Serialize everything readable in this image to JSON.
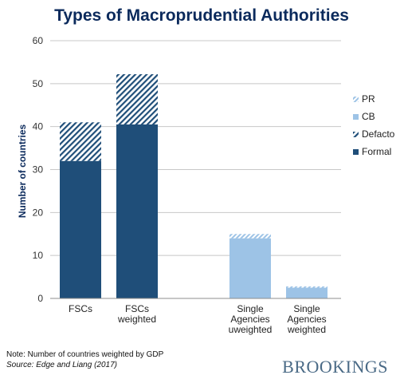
{
  "chart_data": {
    "type": "bar",
    "stacked": true,
    "title": "Types of Macroprudential Authorities",
    "ylabel": "Number of countries",
    "xlabel": "",
    "ylim": [
      0,
      60
    ],
    "yticks": [
      "0",
      "10",
      "20",
      "30",
      "40",
      "50",
      "60"
    ],
    "grid": true,
    "legend_position": "right",
    "categories": [
      [
        "FSCs"
      ],
      [
        "FSCs",
        "weighted"
      ],
      [
        "Single",
        "Agencies",
        "uweighted"
      ],
      [
        "Single",
        "Agencies",
        "weighted"
      ]
    ],
    "series": [
      {
        "name": "Formal",
        "values": [
          32,
          40.5,
          0,
          0
        ]
      },
      {
        "name": "Defacto",
        "values": [
          9,
          11.7,
          0,
          0
        ]
      },
      {
        "name": "CB",
        "values": [
          0,
          0,
          14,
          2.5
        ]
      },
      {
        "name": "PR",
        "values": [
          0,
          0,
          1,
          0.3
        ]
      }
    ],
    "legend": [
      "PR",
      "CB",
      "Defacto",
      "Formal"
    ]
  },
  "colors": {
    "Formal": "#1f4e79",
    "Defacto": "#1f4e79",
    "CB": "#9dc3e6",
    "PR": "#9dc3e6",
    "title": "#0b2a5c",
    "grid": "#c8c8c8"
  },
  "notes": {
    "note": "Note: Number of countries weighted by GDP",
    "source": "Source: Edge and Liang (2017)"
  },
  "brand": "BROOKINGS"
}
